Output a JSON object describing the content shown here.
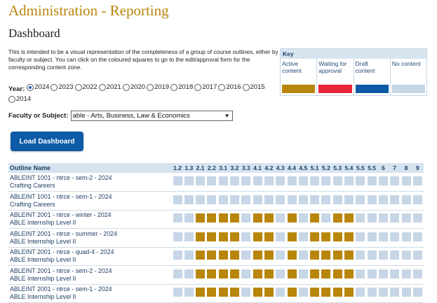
{
  "header": {
    "title": "Administration - Reporting",
    "subtitle": "Dashboard"
  },
  "intro": "This is intended to be a visual representation of the completeness of a group of course outlines, either by faculty or subject. You can click on the coloured squares to go to the edit/approval form for the corresponding content zone.",
  "key": {
    "title": "Key",
    "items": [
      {
        "label": "Active content",
        "color": "#b8860b"
      },
      {
        "label": "Waiting for approval",
        "color": "#e8253a"
      },
      {
        "label": "Draft content",
        "color": "#0d5aa7"
      },
      {
        "label": "No content",
        "color": "#c6d6e6"
      }
    ]
  },
  "year": {
    "label": "Year:",
    "selected": "2024",
    "options": [
      "2024",
      "2023",
      "2022",
      "2021",
      "2020",
      "2019",
      "2018",
      "2017",
      "2016",
      "2015",
      "2014"
    ]
  },
  "faculty": {
    "label": "Faculty or Subject:",
    "value": "able - Arts, Business, Law & Economics"
  },
  "load_button": "Load Dashboard",
  "grid": {
    "name_header": "Outline Name",
    "columns": [
      "1.2",
      "1.3",
      "2.1",
      "2.2",
      "3.1",
      "3.2",
      "3.3",
      "4.1",
      "4.2",
      "4.3",
      "4.4",
      "4.5",
      "5.1",
      "5.2",
      "5.3",
      "5.4",
      "5.5",
      "5.5",
      "6",
      "7",
      "8",
      "9"
    ],
    "rows": [
      {
        "line1": "ABLEINT 1001 - ntrce - sem-2 - 2024",
        "line2": "Crafting Careers",
        "active": []
      },
      {
        "line1": "ABLEINT 1001 - ntrce - sem-1 - 2024",
        "line2": "Crafting Careers",
        "active": []
      },
      {
        "line1": "ABLEINT 2001 - ntrce - winter - 2024",
        "line2": "ABLE Internship Level II",
        "active": [
          "2.1",
          "2.2",
          "3.1",
          "3.2",
          "4.1",
          "4.2",
          "4.4",
          "5.1",
          "5.3",
          "5.4"
        ]
      },
      {
        "line1": "ABLEINT 2001 - ntrce - summer - 2024",
        "line2": "ABLE Internship Level II",
        "active": [
          "2.1",
          "2.2",
          "3.1",
          "3.2",
          "4.1",
          "4.2",
          "4.4",
          "5.1",
          "5.2",
          "5.3",
          "5.4"
        ]
      },
      {
        "line1": "ABLEINT 2001 - ntrce - quad-4 - 2024",
        "line2": "ABLE Internship Level II",
        "active": [
          "2.1",
          "2.2",
          "3.1",
          "3.2",
          "4.1",
          "4.2",
          "4.4",
          "5.1",
          "5.2",
          "5.3",
          "5.4"
        ]
      },
      {
        "line1": "ABLEINT 2001 - ntrce - sem-2 - 2024",
        "line2": "ABLE Internship Level II",
        "active": [
          "2.1",
          "2.2",
          "3.1",
          "3.2",
          "4.1",
          "4.2",
          "4.4",
          "5.1",
          "5.2",
          "5.3",
          "5.4"
        ]
      },
      {
        "line1": "ABLEINT 2001 - ntrce - sem-1 - 2024",
        "line2": "ABLE Internship Level II",
        "active": [
          "2.1",
          "2.2",
          "3.1",
          "3.2",
          "4.1",
          "4.2",
          "4.4",
          "5.1",
          "5.2",
          "5.3",
          "5.4"
        ]
      }
    ]
  }
}
